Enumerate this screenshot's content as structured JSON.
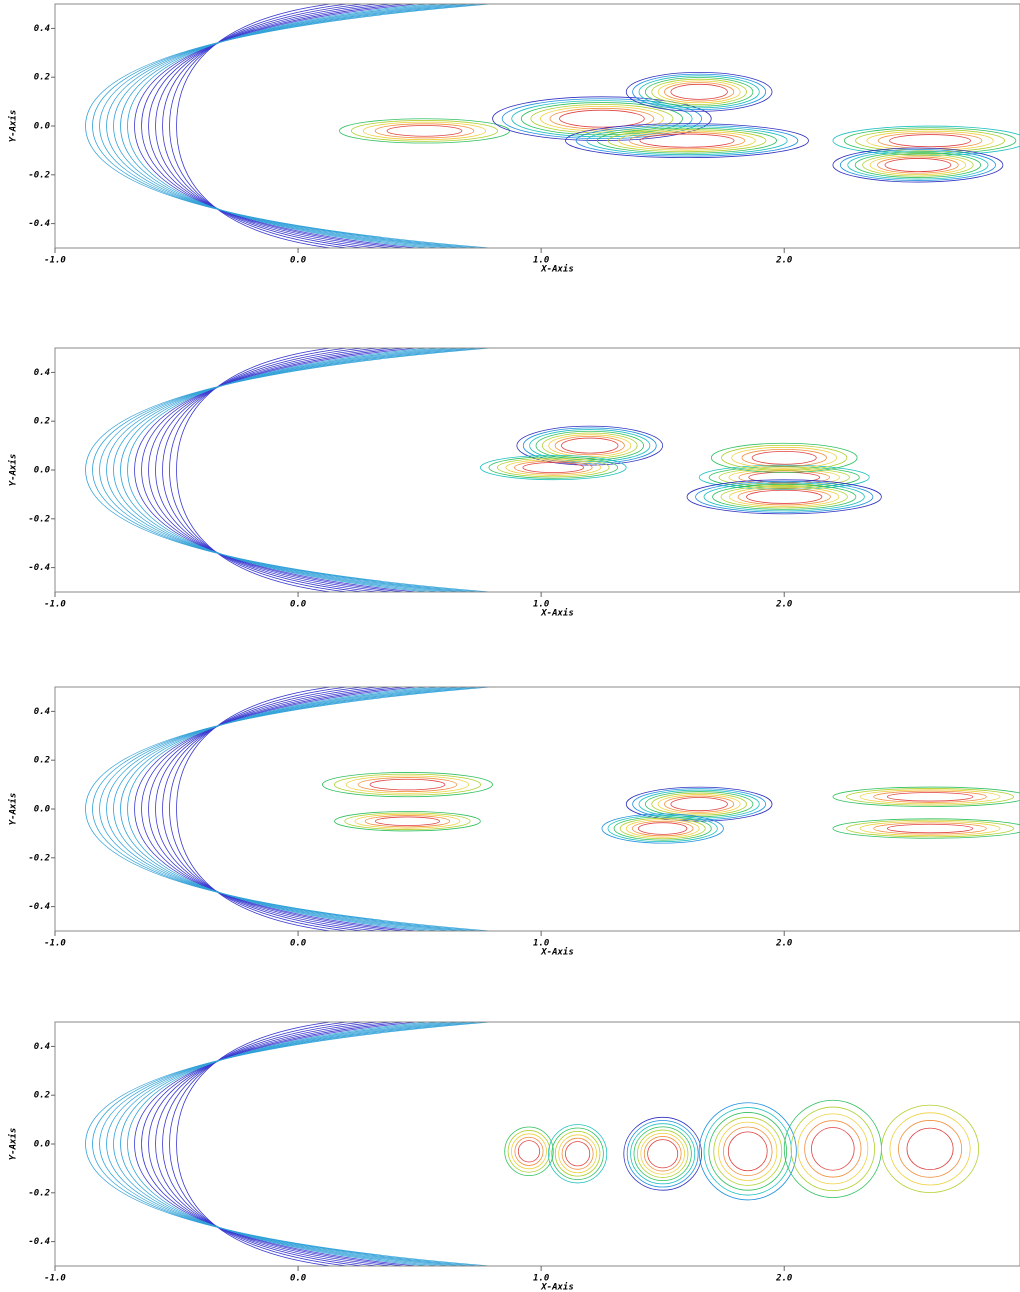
{
  "chart_data": [
    {
      "type": "contour",
      "xlabel": "X-Axis",
      "ylabel": "Y-Axis",
      "xlim": [
        -1.0,
        2.97
      ],
      "ylim": [
        -0.5,
        0.5
      ],
      "xticks": [
        {
          "value": -1,
          "label": "-1.0"
        },
        {
          "value": 0,
          "label": "0.0"
        },
        {
          "value": 1,
          "label": "1.0"
        },
        {
          "value": 2,
          "label": "2.0"
        }
      ],
      "yticks": [
        0.4,
        0.2,
        {
          "value": 0,
          "label": "0.0"
        },
        -0.2,
        -0.4
      ]
    },
    {
      "type": "contour",
      "xlabel": "X-Axis",
      "ylabel": "Y-Axis",
      "xlim": [
        -1.0,
        2.97
      ],
      "ylim": [
        -0.5,
        0.5
      ],
      "xticks": [
        {
          "value": -1,
          "label": "-1.0"
        },
        {
          "value": 0,
          "label": "0.0"
        },
        {
          "value": 1,
          "label": "1.0"
        },
        {
          "value": 2,
          "label": "2.0"
        }
      ],
      "yticks": [
        0.4,
        0.2,
        {
          "value": 0,
          "label": "0.0"
        },
        -0.2,
        -0.4
      ]
    },
    {
      "type": "contour",
      "xlabel": "X-Axis",
      "ylabel": "Y-Axis",
      "xlim": [
        -1.0,
        2.97
      ],
      "ylim": [
        -0.5,
        0.5
      ],
      "xticks": [
        {
          "value": -1,
          "label": "-1.0"
        },
        {
          "value": 0,
          "label": "0.0"
        },
        {
          "value": 1,
          "label": "1.0"
        },
        {
          "value": 2,
          "label": "2.0"
        }
      ],
      "yticks": [
        0.4,
        0.2,
        {
          "value": 0,
          "label": "0.0"
        },
        -0.2,
        -0.4
      ]
    },
    {
      "type": "contour",
      "xlabel": "X-Axis",
      "ylabel": "Y-Axis",
      "xlim": [
        -1.0,
        2.97
      ],
      "ylim": [
        -0.5,
        0.5
      ],
      "xticks": [
        {
          "value": -1,
          "label": "-1.0"
        },
        {
          "value": 0,
          "label": "0.0"
        },
        {
          "value": 1,
          "label": "1.0"
        },
        {
          "value": 2,
          "label": "2.0"
        }
      ],
      "yticks": [
        0.4,
        0.2,
        {
          "value": 0,
          "label": "0.0"
        },
        -0.2,
        -0.4
      ]
    }
  ]
}
